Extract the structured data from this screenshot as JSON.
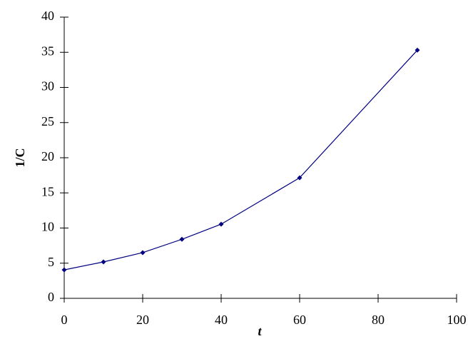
{
  "chart_data": {
    "type": "line",
    "x_label": "t",
    "y_label": "1/C",
    "x": [
      0,
      10,
      20,
      30,
      40,
      60,
      90
    ],
    "series": [
      {
        "color": "#000080",
        "values": [
          4.05,
          5.18,
          6.5,
          8.4,
          10.55,
          17.15,
          35.3
        ]
      }
    ],
    "xlim": [
      0,
      100
    ],
    "xticks": [
      0,
      20,
      40,
      60,
      80,
      100
    ],
    "ylim": [
      0,
      40
    ],
    "yticks": [
      0,
      5,
      10,
      15,
      20,
      25,
      30,
      35,
      40
    ],
    "grid": false
  }
}
